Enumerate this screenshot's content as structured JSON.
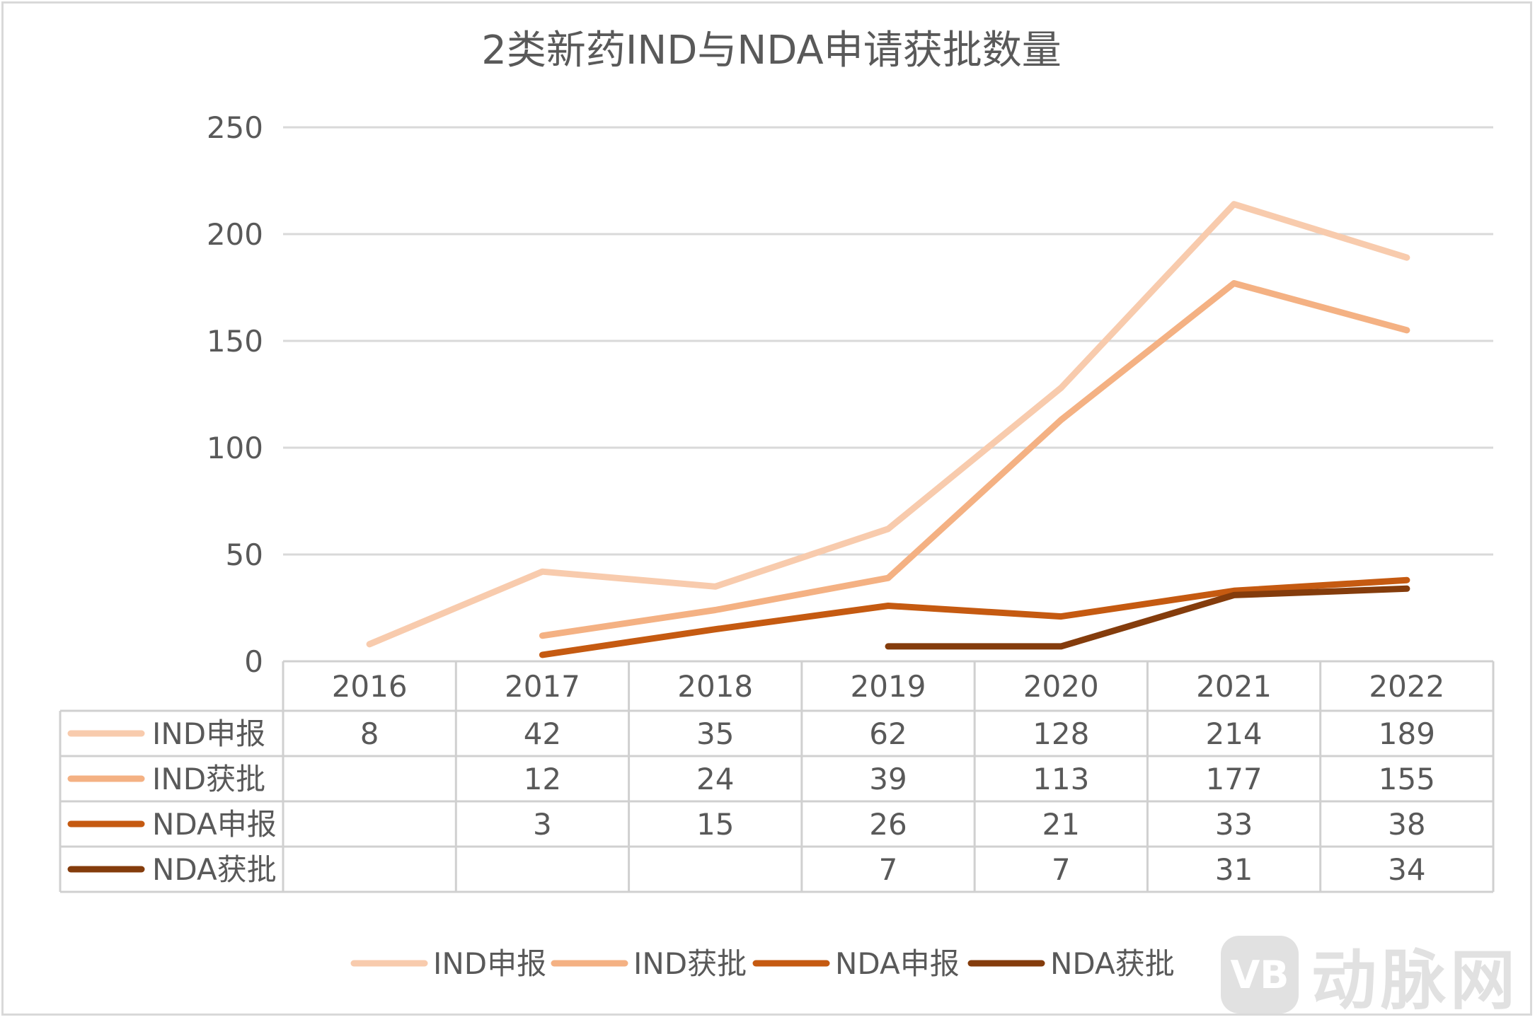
{
  "chart_data": {
    "type": "line",
    "title": "2类新药IND与NDA申请获批数量",
    "categories": [
      "2016",
      "2017",
      "2018",
      "2019",
      "2020",
      "2021",
      "2022"
    ],
    "ylim": [
      0,
      250
    ],
    "yticks": [
      "0",
      "50",
      "100",
      "150",
      "200",
      "250"
    ],
    "grid": true,
    "legend": "bottom",
    "data_table": true,
    "series": [
      {
        "name": "IND申报",
        "color": "#F8CBAD",
        "values": [
          8,
          42,
          35,
          62,
          128,
          214,
          189
        ]
      },
      {
        "name": "IND获批",
        "color": "#F4B183",
        "values": [
          null,
          12,
          24,
          39,
          113,
          177,
          155
        ]
      },
      {
        "name": "NDA申报",
        "color": "#C55A11",
        "values": [
          null,
          3,
          15,
          26,
          21,
          33,
          38
        ]
      },
      {
        "name": "NDA获批",
        "color": "#843C0C",
        "values": [
          null,
          null,
          null,
          7,
          7,
          31,
          34
        ]
      }
    ]
  },
  "watermark": {
    "mark": "VB",
    "text": "动脉网"
  }
}
